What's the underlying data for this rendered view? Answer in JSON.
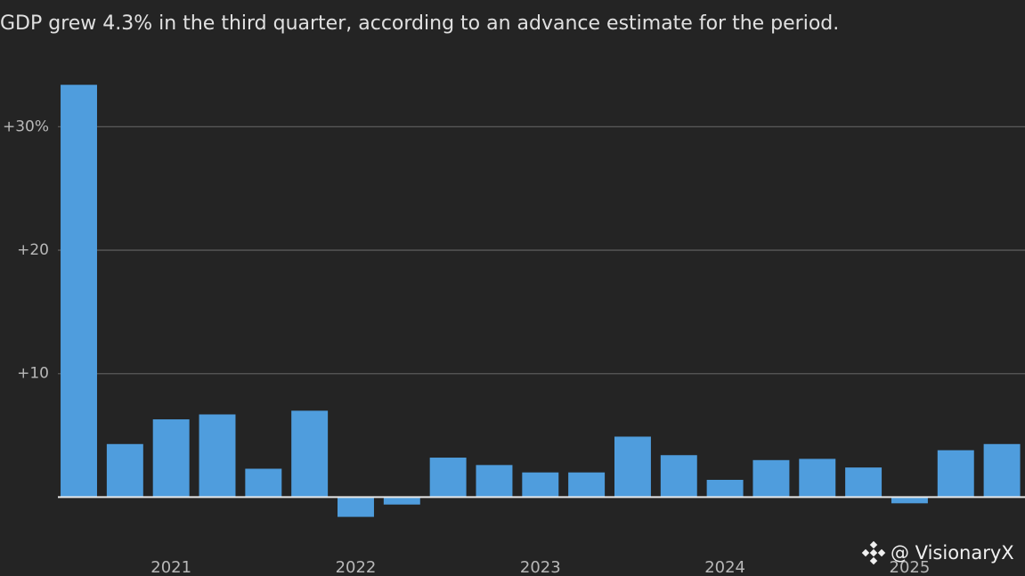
{
  "chart_data": {
    "type": "bar",
    "title": "GDP grew 4.3% in the third quarter, according to an advance estimate for the period.",
    "categories": [
      null,
      null,
      "2021",
      null,
      null,
      null,
      "2022",
      null,
      null,
      null,
      "2023",
      null,
      null,
      null,
      "2024",
      null,
      null,
      null,
      "2025",
      null,
      null
    ],
    "values": [
      33.4,
      4.3,
      6.3,
      6.7,
      2.3,
      7.0,
      -1.6,
      -0.6,
      3.2,
      2.6,
      2.0,
      2.0,
      4.9,
      3.4,
      1.4,
      3.0,
      3.1,
      2.4,
      -0.5,
      3.8,
      4.3
    ],
    "color": "#4f9ddd",
    "ylim": [
      -3,
      34.5
    ],
    "yticks": [
      {
        "value": 10,
        "label": "+10"
      },
      {
        "value": 20,
        "label": "+20"
      },
      {
        "value": 30,
        "label": "+30%"
      }
    ],
    "grid": true,
    "watermark": "@ VisionaryX"
  }
}
